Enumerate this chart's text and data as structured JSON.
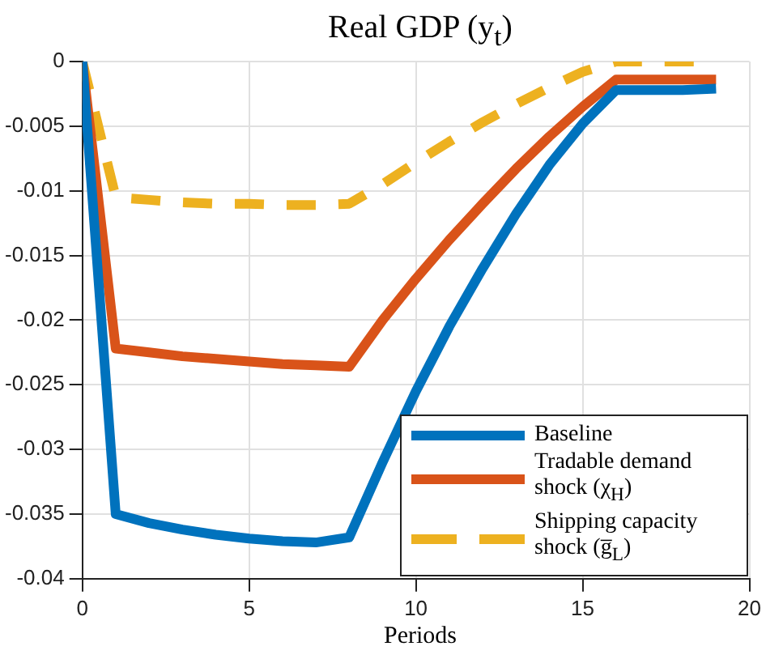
{
  "chart_data": {
    "type": "line",
    "title": "Real GDP (y$_{t}$)",
    "xlabel": "Periods",
    "x": [
      0,
      1,
      2,
      3,
      4,
      5,
      6,
      7,
      8,
      9,
      10,
      11,
      12,
      13,
      14,
      15,
      16,
      17,
      18,
      19
    ],
    "xlim": [
      0,
      20
    ],
    "xticks": [
      0,
      5,
      10,
      15,
      20
    ],
    "ylim": [
      -0.04,
      0
    ],
    "yticks": [
      -0.04,
      -0.035,
      -0.03,
      -0.025,
      -0.02,
      -0.015,
      -0.01,
      -0.005,
      0
    ],
    "grid": true,
    "legend": "bottom right",
    "marker": "none",
    "series": [
      {
        "name": "Baseline",
        "color": "#0072bd",
        "line_style": "solid",
        "values": [
          0,
          -0.035,
          -0.0357,
          -0.0362,
          -0.0366,
          -0.0369,
          -0.0371,
          -0.0372,
          -0.0368,
          -0.031,
          -0.0255,
          -0.0205,
          -0.016,
          -0.0118,
          -0.008,
          -0.0048,
          -0.0022,
          -0.0022,
          -0.0022,
          -0.0021
        ]
      },
      {
        "name": "Tradable demand shock (χ$_{H}$)",
        "color": "#d95319",
        "line_style": "solid",
        "values": [
          0,
          -0.0222,
          -0.0225,
          -0.0228,
          -0.023,
          -0.0232,
          -0.0234,
          -0.0235,
          -0.0236,
          -0.02,
          -0.0168,
          -0.0138,
          -0.011,
          -0.0083,
          -0.0058,
          -0.0035,
          -0.0014,
          -0.0014,
          -0.0014,
          -0.0014
        ]
      },
      {
        "name": "Shipping capacity shock (g̅$_{L}$)",
        "color": "#edb120",
        "line_style": "dashed",
        "values": [
          0,
          -0.0105,
          -0.0107,
          -0.0109,
          -0.011,
          -0.011,
          -0.0111,
          -0.0111,
          -0.011,
          -0.0095,
          -0.0078,
          -0.0062,
          -0.0047,
          -0.0033,
          -0.002,
          -0.0008,
          0,
          0,
          0,
          0
        ]
      }
    ]
  }
}
